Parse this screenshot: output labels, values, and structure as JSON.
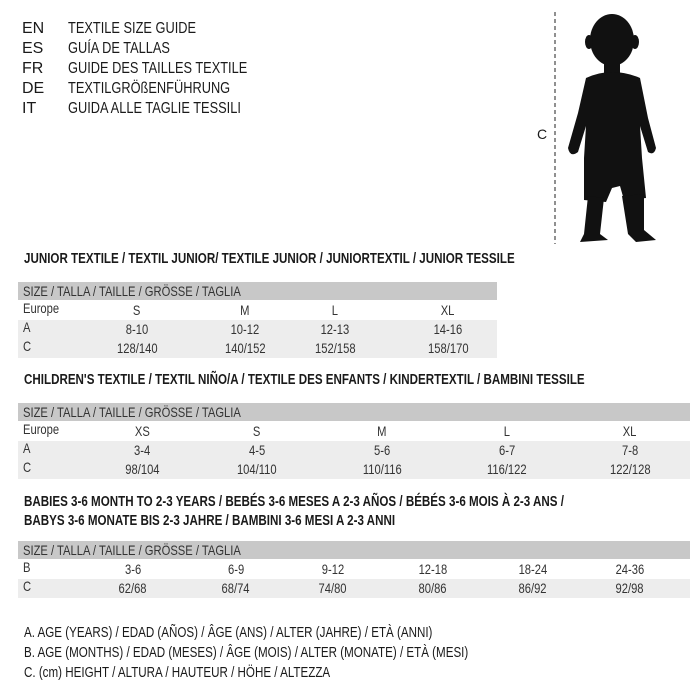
{
  "languages": [
    {
      "code": "EN",
      "text": "TEXTILE SIZE GUIDE"
    },
    {
      "code": "ES",
      "text": "GUÍA DE TALLAS"
    },
    {
      "code": "FR",
      "text": "GUIDE DES TAILLES TEXTILE"
    },
    {
      "code": "DE",
      "text": "TEXTILGRÖßENFÜHRUNG"
    },
    {
      "code": "IT",
      "text": "GUIDA ALLE TAGLIE TESSILI"
    }
  ],
  "figure": {
    "measure_label": "C",
    "icon": "child-silhouette"
  },
  "tables": [
    {
      "title": [
        "JUNIOR TEXTILE / TEXTIL JUNIOR/ TEXTILE JUNIOR / JUNIORTEXTIL / JUNIOR TESSILE"
      ],
      "header": "SIZE / TALLA / TAILLE / GRÖSSE / TAGLIA",
      "rows": [
        {
          "label": "Europe",
          "values": [
            "S",
            "M",
            "L",
            "XL"
          ]
        },
        {
          "label": "A",
          "values": [
            "8-10",
            "10-12",
            "12-13",
            "14-16"
          ]
        },
        {
          "label": "C",
          "values": [
            "128/140",
            "140/152",
            "152/158",
            "158/170"
          ]
        }
      ]
    },
    {
      "title": [
        "CHILDREN'S TEXTILE / TEXTIL NIÑO/A / TEXTILE DES ENFANTS / KINDERTEXTIL / BAMBINI TESSILE"
      ],
      "header": "SIZE / TALLA / TAILLE / GRÖSSE / TAGLIA",
      "rows": [
        {
          "label": "Europe",
          "values": [
            "XS",
            "S",
            "M",
            "L",
            "XL"
          ]
        },
        {
          "label": "A",
          "values": [
            "3-4",
            "4-5",
            "5-6",
            "6-7",
            "7-8"
          ]
        },
        {
          "label": "C",
          "values": [
            "98/104",
            "104/110",
            "110/116",
            "116/122",
            "122/128"
          ]
        }
      ]
    },
    {
      "title": [
        "BABIES 3-6 MONTH TO 2-3 YEARS / BEBÉS 3-6 MESES A 2-3 AÑOS / BÉBÉS 3-6 MOIS À 2-3 ANS /",
        "BABYS 3-6 MONATE BIS 2-3 JAHRE / BAMBINI 3-6 MESI A 2-3 ANNI"
      ],
      "header": "SIZE / TALLA / TAILLE / GRÖSSE / TAGLIA",
      "rows": [
        {
          "label": "B",
          "values": [
            "3-6",
            "6-9",
            "9-12",
            "12-18",
            "18-24",
            "24-36"
          ]
        },
        {
          "label": "C",
          "values": [
            "62/68",
            "68/74",
            "74/80",
            "80/86",
            "86/92",
            "92/98"
          ]
        }
      ]
    }
  ],
  "legend": [
    "A. AGE (YEARS) / EDAD (AÑOS) / ÂGE (ANS) / ALTER (JAHRE) / ETÀ (ANNI)",
    "B. AGE (MONTHS) / EDAD (MESES) / ÂGE (MOIS) / ALTER (MONATE) / ETÀ (MESI)",
    "C. (cm) HEIGHT / ALTURA / HAUTEUR / HÖHE / ALTEZZA"
  ]
}
